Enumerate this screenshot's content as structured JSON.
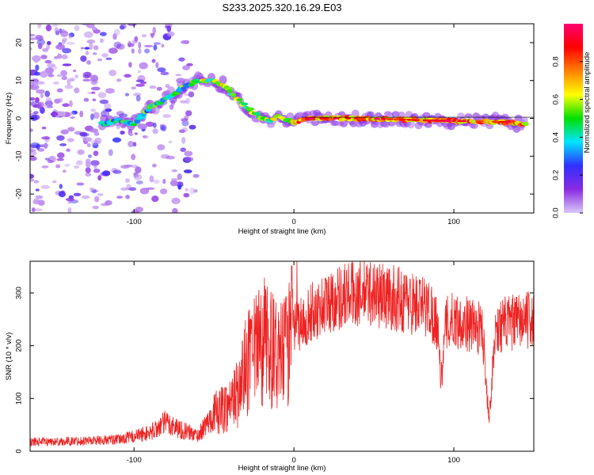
{
  "title": "S233.2025.320.16.29.E03",
  "chart_data": [
    {
      "type": "heatmap",
      "name": "spectrogram",
      "xlabel": "Height of straight line (km)",
      "ylabel": "Frequency (Hz)",
      "xlim": [
        -165,
        150
      ],
      "ylim": [
        -25,
        25
      ],
      "xticks": [
        -100,
        0,
        100
      ],
      "xtick_labels": [
        "-100",
        "0",
        "100"
      ],
      "yticks": [
        -20,
        -10,
        0,
        10,
        20
      ],
      "ytick_labels": [
        "-20",
        "-10",
        "0",
        "10",
        "20"
      ],
      "colorbar": {
        "label": "Normalized spectral amplitude",
        "range": [
          0,
          1
        ],
        "ticks": [
          0.0,
          0.2,
          0.4,
          0.6,
          0.8
        ],
        "tick_labels": [
          "0.0",
          "0.2",
          "0.4",
          "0.6",
          "0.8"
        ],
        "colors": [
          "#d9c8f8",
          "#8a2be2",
          "#3030ff",
          "#00e5ff",
          "#00e000",
          "#ffff00",
          "#ff8000",
          "#ff0000",
          "#ff0070"
        ]
      },
      "ridge": {
        "x": [
          -120,
          -110,
          -100,
          -90,
          -80,
          -70,
          -60,
          -52,
          -45,
          -40,
          -35,
          -30,
          -25,
          -20,
          -15,
          -10,
          -5,
          0,
          10,
          20,
          40,
          60,
          80,
          100,
          120,
          135,
          145
        ],
        "y": [
          -1.5,
          -0.5,
          -1.5,
          3,
          5,
          8,
          10,
          10,
          9,
          7,
          5,
          3,
          1.5,
          0,
          -1,
          0.5,
          -0.5,
          -1,
          0,
          0,
          0,
          -0.2,
          -0.5,
          -0.7,
          -0.8,
          -1,
          -1.5
        ]
      },
      "noise_region_x": [
        -165,
        -60
      ],
      "noise_region_y": [
        -25,
        25
      ]
    },
    {
      "type": "line",
      "name": "snr",
      "xlabel": "Height of straight line (km)",
      "ylabel": "SNR (10 * v/v)",
      "xlim": [
        -165,
        150
      ],
      "ylim": [
        0,
        360
      ],
      "xticks": [
        -100,
        0,
        100
      ],
      "xtick_labels": [
        "-100",
        "0",
        "100"
      ],
      "yticks": [
        0,
        100,
        200,
        300
      ],
      "ytick_labels": [
        "0",
        "100",
        "200",
        "300"
      ],
      "color": "#ee2222",
      "envelope": {
        "x": [
          -165,
          -150,
          -130,
          -110,
          -90,
          -80,
          -70,
          -60,
          -50,
          -45,
          -40,
          -35,
          -30,
          -25,
          -20,
          -15,
          -10,
          -5,
          0,
          10,
          20,
          30,
          40,
          50,
          60,
          70,
          80,
          85,
          90,
          92,
          95,
          100,
          110,
          118,
          122,
          126,
          130,
          140,
          150
        ],
        "y": [
          18,
          18,
          20,
          22,
          35,
          55,
          40,
          30,
          70,
          80,
          90,
          110,
          160,
          180,
          210,
          200,
          170,
          190,
          230,
          260,
          280,
          295,
          300,
          300,
          290,
          285,
          275,
          270,
          240,
          130,
          240,
          250,
          240,
          230,
          60,
          230,
          240,
          245,
          250
        ]
      }
    }
  ]
}
